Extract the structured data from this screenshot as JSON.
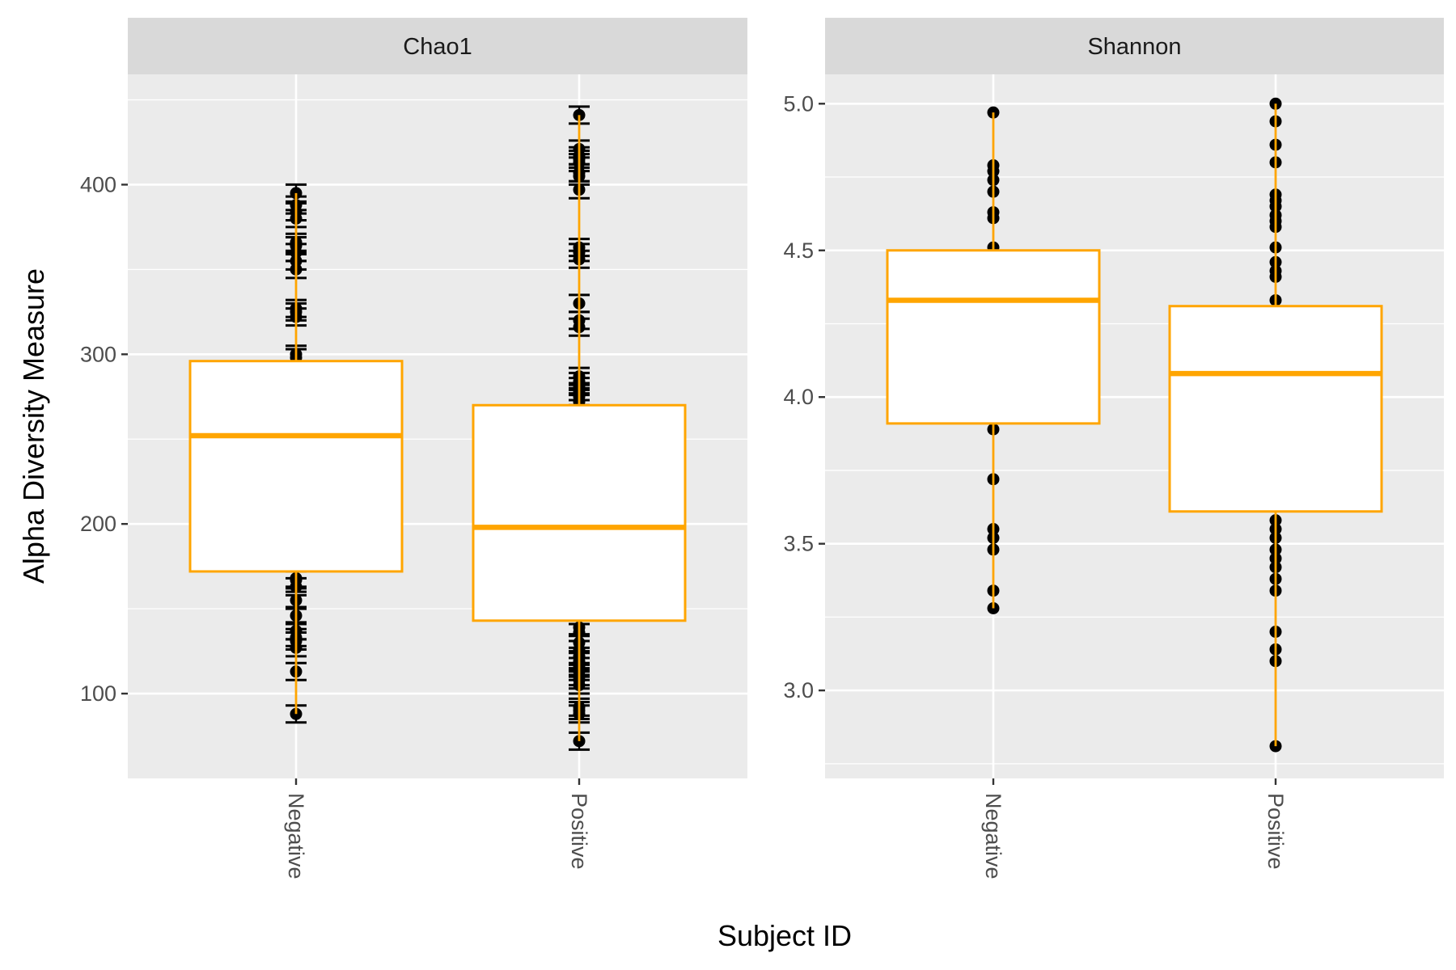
{
  "chart_data": {
    "type": "box",
    "xlabel": "Subject ID",
    "ylabel": "Alpha Diversity Measure",
    "categories": [
      "Negative",
      "Positive"
    ],
    "colors": {
      "box_outline": "#FFA500",
      "points": "#000000",
      "panel_bg": "#EBEBEB",
      "strip_bg": "#D9D9D9",
      "grid": "#FFFFFF"
    },
    "panels": [
      {
        "title": "Chao1",
        "ylim": [
          50,
          465
        ],
        "yticks": [
          100,
          200,
          300,
          400
        ],
        "ytick_labels": [
          "100",
          "200",
          "300",
          "400"
        ],
        "minor_grid": [
          150,
          250,
          350,
          450
        ],
        "error_bar_halfwidth": 5,
        "groups": [
          {
            "category": "Negative",
            "box": {
              "lower_whisker": 88,
              "q1": 172,
              "median": 252,
              "q3": 296,
              "upper_whisker": 395
            },
            "points": [
              88,
              113,
              127,
              131,
              133,
              137,
              146,
              155,
              163,
              167,
              168,
              298,
              300,
              322,
              325,
              327,
              350,
              355,
              360,
              364,
              366,
              380,
              384,
              388,
              395
            ]
          },
          {
            "category": "Positive",
            "box": {
              "lower_whisker": 72,
              "q1": 143,
              "median": 198,
              "q3": 270,
              "upper_whisker": 441
            },
            "points": [
              72,
              88,
              90,
              92,
              105,
              108,
              110,
              113,
              116,
              119,
              122,
              126,
              130,
              136,
              139,
              272,
              275,
              278,
              281,
              284,
              287,
              316,
              320,
              330,
              356,
              360,
              363,
              397,
              405,
              407,
              413,
              415,
              417,
              421,
              441
            ]
          }
        ]
      },
      {
        "title": "Shannon",
        "ylim": [
          2.7,
          5.1
        ],
        "yticks": [
          3.0,
          3.5,
          4.0,
          4.5,
          5.0
        ],
        "ytick_labels": [
          "3.0",
          "3.5",
          "4.0",
          "4.5",
          "5.0"
        ],
        "minor_grid": [
          2.75,
          3.25,
          3.75,
          4.25,
          4.75
        ],
        "groups": [
          {
            "category": "Negative",
            "box": {
              "lower_whisker": 3.28,
              "q1": 3.91,
              "median": 4.33,
              "q3": 4.5,
              "upper_whisker": 4.97
            },
            "points": [
              3.28,
              3.34,
              3.48,
              3.52,
              3.55,
              3.72,
              3.89,
              4.51,
              4.61,
              4.63,
              4.7,
              4.74,
              4.77,
              4.79,
              4.97
            ]
          },
          {
            "category": "Positive",
            "box": {
              "lower_whisker": 2.81,
              "q1": 3.61,
              "median": 4.08,
              "q3": 4.31,
              "upper_whisker": 5.0
            },
            "points": [
              2.81,
              3.1,
              3.14,
              3.2,
              3.34,
              3.38,
              3.42,
              3.45,
              3.48,
              3.52,
              3.55,
              3.58,
              4.33,
              4.41,
              4.43,
              4.46,
              4.51,
              4.58,
              4.6,
              4.62,
              4.65,
              4.67,
              4.69,
              4.8,
              4.86,
              4.94,
              5.0
            ]
          }
        ]
      }
    ]
  }
}
